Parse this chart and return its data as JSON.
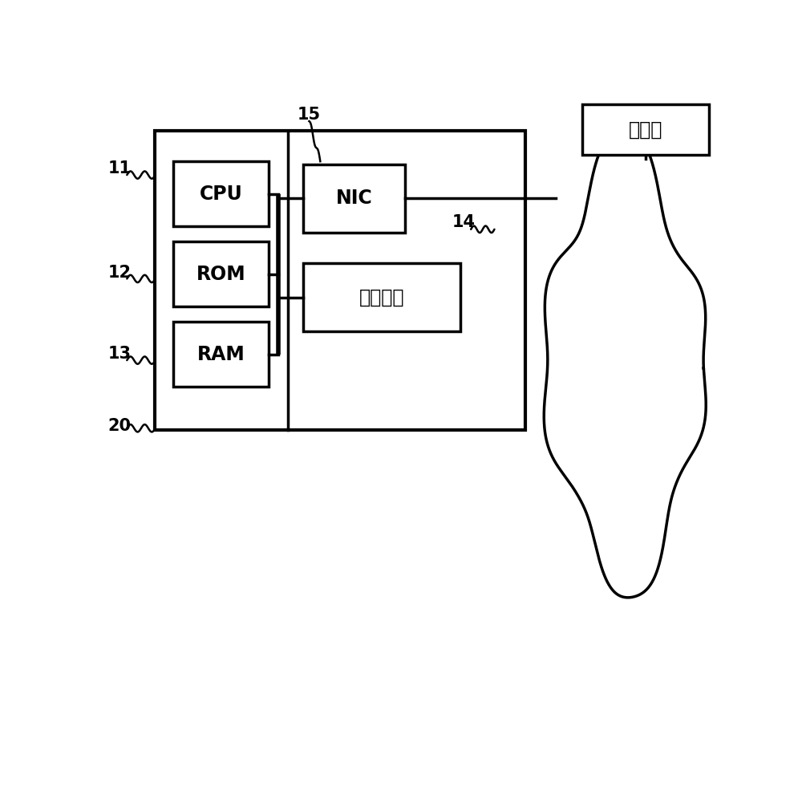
{
  "bg_color": "#ffffff",
  "line_color": "#000000",
  "line_width": 2.5,
  "labels": {
    "cpu": "CPU",
    "rom": "ROM",
    "ram": "RAM",
    "nic": "NIC",
    "storage": "存储装置",
    "server": "服务器"
  },
  "ref_numbers": {
    "n11": "11",
    "n12": "12",
    "n13": "13",
    "n14": "14",
    "n15": "15",
    "n20": "20"
  }
}
